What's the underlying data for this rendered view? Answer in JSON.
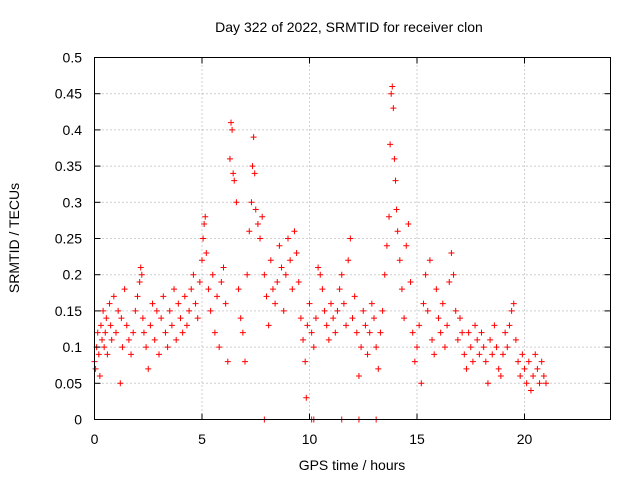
{
  "chart_data": {
    "type": "scatter",
    "title": "Day 322 of 2022, SRMTID for receiver clon",
    "xlabel": "GPS time / hours",
    "ylabel": "SRMTID / TECUs",
    "xlim": [
      0,
      24
    ],
    "ylim": [
      0,
      0.5
    ],
    "xticks": [
      0,
      5,
      10,
      15,
      20
    ],
    "xtick_labels": [
      "0",
      "5",
      "10",
      "15",
      "20"
    ],
    "yticks": [
      0,
      0.05,
      0.1,
      0.15,
      0.2,
      0.25,
      0.3,
      0.35,
      0.4,
      0.45,
      0.5
    ],
    "ytick_labels": [
      "0",
      "0.05",
      "0.1",
      "0.15",
      "0.2",
      "0.25",
      "0.3",
      "0.35",
      "0.4",
      "0.45",
      "0.5"
    ],
    "grid": true,
    "marker": "plus",
    "color": "#ff0000",
    "series": [
      {
        "name": "SRMTID",
        "points": [
          [
            0.0,
            0.08
          ],
          [
            0.05,
            0.07
          ],
          [
            0.1,
            0.1
          ],
          [
            0.15,
            0.12
          ],
          [
            0.2,
            0.09
          ],
          [
            0.25,
            0.06
          ],
          [
            0.3,
            0.13
          ],
          [
            0.35,
            0.11
          ],
          [
            0.4,
            0.15
          ],
          [
            0.45,
            0.1
          ],
          [
            0.5,
            0.12
          ],
          [
            0.55,
            0.14
          ],
          [
            0.6,
            0.09
          ],
          [
            0.7,
            0.16
          ],
          [
            0.75,
            0.13
          ],
          [
            0.8,
            0.11
          ],
          [
            0.9,
            0.17
          ],
          [
            1.0,
            0.12
          ],
          [
            1.1,
            0.15
          ],
          [
            1.2,
            0.05
          ],
          [
            1.25,
            0.14
          ],
          [
            1.3,
            0.1
          ],
          [
            1.4,
            0.18
          ],
          [
            1.5,
            0.13
          ],
          [
            1.6,
            0.11
          ],
          [
            1.7,
            0.09
          ],
          [
            1.8,
            0.12
          ],
          [
            1.9,
            0.15
          ],
          [
            2.0,
            0.17
          ],
          [
            2.1,
            0.19
          ],
          [
            2.15,
            0.21
          ],
          [
            2.2,
            0.2
          ],
          [
            2.25,
            0.14
          ],
          [
            2.3,
            0.12
          ],
          [
            2.4,
            0.1
          ],
          [
            2.5,
            0.07
          ],
          [
            2.6,
            0.13
          ],
          [
            2.7,
            0.16
          ],
          [
            2.8,
            0.11
          ],
          [
            2.9,
            0.15
          ],
          [
            3.0,
            0.09
          ],
          [
            3.1,
            0.14
          ],
          [
            3.2,
            0.17
          ],
          [
            3.3,
            0.12
          ],
          [
            3.4,
            0.1
          ],
          [
            3.5,
            0.15
          ],
          [
            3.6,
            0.13
          ],
          [
            3.7,
            0.18
          ],
          [
            3.8,
            0.11
          ],
          [
            3.9,
            0.16
          ],
          [
            4.0,
            0.14
          ],
          [
            4.1,
            0.12
          ],
          [
            4.2,
            0.17
          ],
          [
            4.3,
            0.13
          ],
          [
            4.4,
            0.15
          ],
          [
            4.5,
            0.18
          ],
          [
            4.6,
            0.2
          ],
          [
            4.7,
            0.16
          ],
          [
            4.8,
            0.14
          ],
          [
            4.9,
            0.19
          ],
          [
            5.0,
            0.22
          ],
          [
            5.05,
            0.25
          ],
          [
            5.1,
            0.27
          ],
          [
            5.15,
            0.28
          ],
          [
            5.2,
            0.23
          ],
          [
            5.3,
            0.18
          ],
          [
            5.4,
            0.15
          ],
          [
            5.5,
            0.2
          ],
          [
            5.6,
            0.12
          ],
          [
            5.7,
            0.17
          ],
          [
            5.8,
            0.1
          ],
          [
            5.9,
            0.19
          ],
          [
            6.0,
            0.21
          ],
          [
            6.1,
            0.16
          ],
          [
            6.2,
            0.08
          ],
          [
            6.3,
            0.36
          ],
          [
            6.35,
            0.41
          ],
          [
            6.4,
            0.4
          ],
          [
            6.45,
            0.34
          ],
          [
            6.5,
            0.33
          ],
          [
            6.6,
            0.3
          ],
          [
            6.7,
            0.18
          ],
          [
            6.8,
            0.14
          ],
          [
            6.9,
            0.12
          ],
          [
            7.0,
            0.08
          ],
          [
            7.1,
            0.2
          ],
          [
            7.2,
            0.26
          ],
          [
            7.3,
            0.3
          ],
          [
            7.35,
            0.35
          ],
          [
            7.4,
            0.39
          ],
          [
            7.45,
            0.34
          ],
          [
            7.5,
            0.29
          ],
          [
            7.6,
            0.27
          ],
          [
            7.7,
            0.25
          ],
          [
            7.8,
            0.28
          ],
          [
            7.9,
            0.2
          ],
          [
            8.0,
            0.17
          ],
          [
            8.1,
            0.13
          ],
          [
            8.2,
            0.22
          ],
          [
            8.3,
            0.18
          ],
          [
            8.4,
            0.16
          ],
          [
            8.5,
            0.19
          ],
          [
            8.6,
            0.24
          ],
          [
            8.7,
            0.21
          ],
          [
            8.8,
            0.15
          ],
          [
            8.9,
            0.2
          ],
          [
            9.0,
            0.25
          ],
          [
            9.1,
            0.22
          ],
          [
            9.2,
            0.18
          ],
          [
            9.3,
            0.26
          ],
          [
            9.4,
            0.23
          ],
          [
            9.5,
            0.19
          ],
          [
            9.6,
            0.14
          ],
          [
            9.7,
            0.11
          ],
          [
            9.8,
            0.08
          ],
          [
            9.85,
            0.03
          ],
          [
            9.9,
            0.13
          ],
          [
            10.0,
            0.16
          ],
          [
            10.1,
            0.12
          ],
          [
            10.2,
            0.1
          ],
          [
            10.3,
            0.14
          ],
          [
            10.4,
            0.21
          ],
          [
            10.5,
            0.2
          ],
          [
            10.6,
            0.18
          ],
          [
            10.7,
            0.15
          ],
          [
            10.8,
            0.13
          ],
          [
            10.9,
            0.11
          ],
          [
            11.0,
            0.16
          ],
          [
            11.1,
            0.14
          ],
          [
            11.2,
            0.12
          ],
          [
            11.3,
            0.15
          ],
          [
            11.4,
            0.18
          ],
          [
            11.5,
            0.2
          ],
          [
            11.6,
            0.16
          ],
          [
            11.7,
            0.13
          ],
          [
            11.8,
            0.22
          ],
          [
            11.9,
            0.25
          ],
          [
            12.0,
            0.14
          ],
          [
            12.1,
            0.17
          ],
          [
            12.2,
            0.12
          ],
          [
            12.3,
            0.06
          ],
          [
            12.4,
            0.1
          ],
          [
            12.5,
            0.15
          ],
          [
            12.6,
            0.13
          ],
          [
            12.7,
            0.09
          ],
          [
            12.8,
            0.12
          ],
          [
            12.9,
            0.16
          ],
          [
            13.0,
            0.14
          ],
          [
            13.1,
            0.1
          ],
          [
            13.2,
            0.07
          ],
          [
            13.3,
            0.12
          ],
          [
            13.4,
            0.15
          ],
          [
            13.5,
            0.2
          ],
          [
            13.6,
            0.24
          ],
          [
            13.7,
            0.28
          ],
          [
            13.75,
            0.38
          ],
          [
            13.8,
            0.45
          ],
          [
            13.85,
            0.46
          ],
          [
            13.9,
            0.43
          ],
          [
            13.95,
            0.36
          ],
          [
            14.0,
            0.33
          ],
          [
            14.05,
            0.29
          ],
          [
            14.1,
            0.26
          ],
          [
            14.2,
            0.22
          ],
          [
            14.3,
            0.18
          ],
          [
            14.4,
            0.14
          ],
          [
            14.5,
            0.24
          ],
          [
            14.6,
            0.27
          ],
          [
            14.7,
            0.19
          ],
          [
            14.8,
            0.12
          ],
          [
            14.9,
            0.08
          ],
          [
            15.0,
            0.1
          ],
          [
            15.1,
            0.13
          ],
          [
            15.2,
            0.05
          ],
          [
            15.3,
            0.16
          ],
          [
            15.4,
            0.2
          ],
          [
            15.5,
            0.15
          ],
          [
            15.6,
            0.22
          ],
          [
            15.7,
            0.11
          ],
          [
            15.8,
            0.09
          ],
          [
            15.9,
            0.18
          ],
          [
            16.0,
            0.14
          ],
          [
            16.1,
            0.12
          ],
          [
            16.2,
            0.16
          ],
          [
            16.3,
            0.1
          ],
          [
            16.4,
            0.13
          ],
          [
            16.5,
            0.19
          ],
          [
            16.6,
            0.23
          ],
          [
            16.7,
            0.2
          ],
          [
            16.8,
            0.15
          ],
          [
            16.9,
            0.11
          ],
          [
            17.0,
            0.14
          ],
          [
            17.1,
            0.12
          ],
          [
            17.2,
            0.09
          ],
          [
            17.3,
            0.07
          ],
          [
            17.4,
            0.12
          ],
          [
            17.5,
            0.1
          ],
          [
            17.6,
            0.08
          ],
          [
            17.7,
            0.13
          ],
          [
            17.8,
            0.11
          ],
          [
            17.9,
            0.09
          ],
          [
            18.0,
            0.12
          ],
          [
            18.1,
            0.1
          ],
          [
            18.2,
            0.08
          ],
          [
            18.3,
            0.05
          ],
          [
            18.4,
            0.11
          ],
          [
            18.5,
            0.09
          ],
          [
            18.6,
            0.13
          ],
          [
            18.7,
            0.1
          ],
          [
            18.8,
            0.07
          ],
          [
            18.9,
            0.06
          ],
          [
            19.0,
            0.09
          ],
          [
            19.1,
            0.12
          ],
          [
            19.2,
            0.1
          ],
          [
            19.3,
            0.13
          ],
          [
            19.4,
            0.15
          ],
          [
            19.5,
            0.16
          ],
          [
            19.6,
            0.11
          ],
          [
            19.7,
            0.08
          ],
          [
            19.8,
            0.06
          ],
          [
            19.9,
            0.09
          ],
          [
            20.0,
            0.07
          ],
          [
            20.1,
            0.05
          ],
          [
            20.2,
            0.08
          ],
          [
            20.3,
            0.04
          ],
          [
            20.4,
            0.06
          ],
          [
            20.5,
            0.09
          ],
          [
            20.6,
            0.07
          ],
          [
            20.7,
            0.05
          ],
          [
            20.8,
            0.08
          ],
          [
            20.9,
            0.06
          ],
          [
            21.0,
            0.05
          ],
          [
            7.9,
            0.0
          ],
          [
            10.1,
            0.0
          ],
          [
            10.2,
            0.0
          ],
          [
            11.5,
            0.0
          ],
          [
            12.3,
            0.0
          ],
          [
            13.1,
            0.0
          ]
        ]
      }
    ]
  }
}
